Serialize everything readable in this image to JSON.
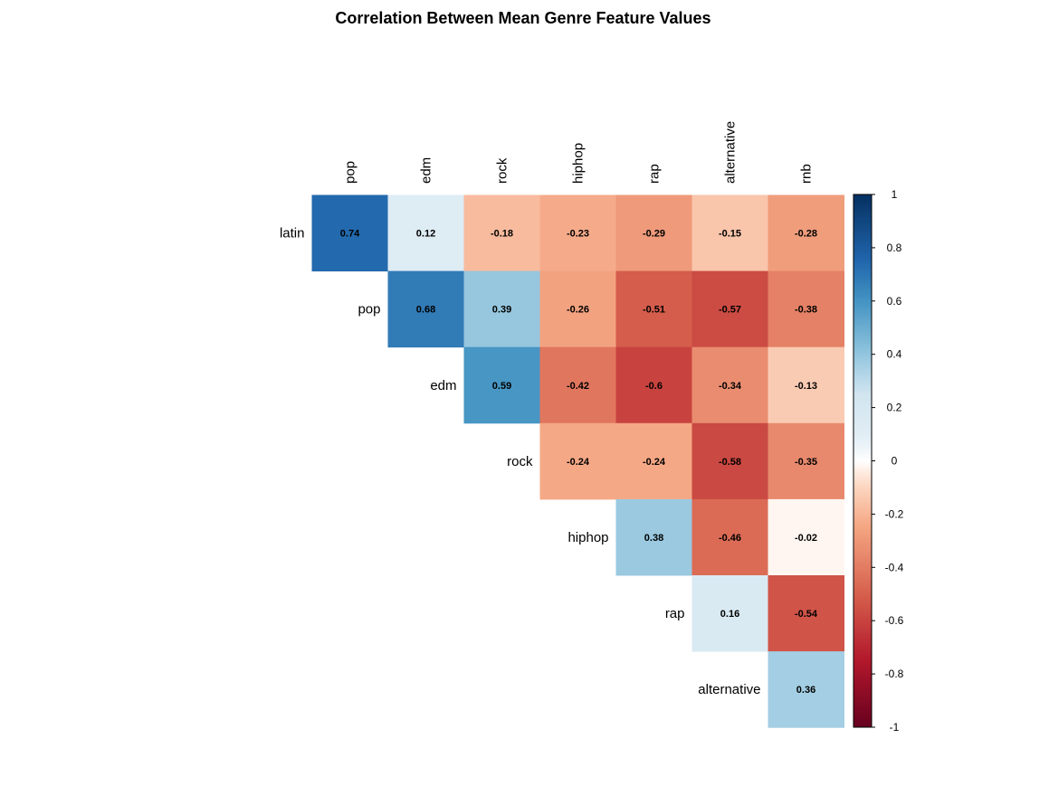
{
  "chart_data": {
    "type": "heatmap",
    "title": "Correlation Between Mean Genre Feature Values",
    "row_labels": [
      "latin",
      "pop",
      "edm",
      "rock",
      "hiphop",
      "rap",
      "alternative"
    ],
    "col_labels": [
      "pop",
      "edm",
      "rock",
      "hiphop",
      "rap",
      "alternative",
      "rnb"
    ],
    "values": [
      [
        0.74,
        0.12,
        -0.18,
        -0.23,
        -0.29,
        -0.15,
        -0.28
      ],
      [
        null,
        0.68,
        0.39,
        -0.26,
        -0.51,
        -0.57,
        -0.38
      ],
      [
        null,
        null,
        0.59,
        -0.42,
        -0.6,
        -0.34,
        -0.13
      ],
      [
        null,
        null,
        null,
        -0.24,
        -0.24,
        -0.58,
        -0.35
      ],
      [
        null,
        null,
        null,
        null,
        0.38,
        -0.46,
        -0.02
      ],
      [
        null,
        null,
        null,
        null,
        null,
        0.16,
        -0.54
      ],
      [
        null,
        null,
        null,
        null,
        null,
        null,
        0.36
      ]
    ],
    "value_range": [
      -1,
      1
    ],
    "legend": {
      "placement": "right",
      "ticks": [
        1,
        0.8,
        0.6,
        0.4,
        0.2,
        0,
        -0.2,
        -0.4,
        -0.6,
        -0.8,
        -1
      ]
    },
    "colors": {
      "negative_end": "#67001f",
      "neutral": "#ffffff",
      "positive_end": "#053061"
    },
    "grid": false
  }
}
